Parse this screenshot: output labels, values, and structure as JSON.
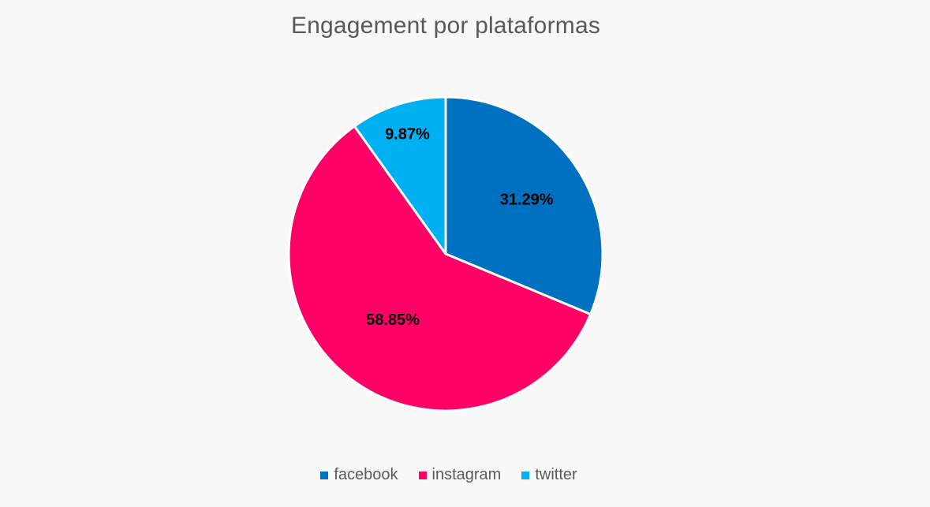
{
  "chart_data": {
    "type": "pie",
    "title": "Engagement por plataformas",
    "categories": [
      "facebook",
      "instagram",
      "twitter"
    ],
    "values": [
      31.29,
      58.85,
      9.87
    ],
    "labels": [
      "31.29%",
      "58.85%",
      "9.87%"
    ],
    "colors": [
      "#0070c0",
      "#ff0066",
      "#00b0f0"
    ],
    "legend_position": "bottom"
  }
}
